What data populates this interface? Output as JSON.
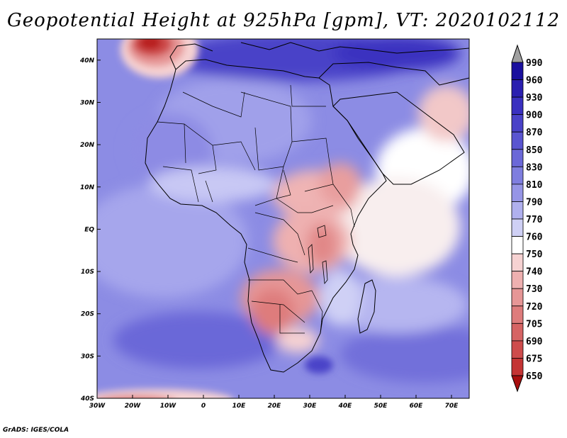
{
  "title": "Geopotential Height at 925hPa [gpm], VT: 2020102112",
  "credit": "GrADS: IGES/COLA",
  "map": {
    "variable": "Geopotential Height",
    "level": "925hPa",
    "units": "gpm",
    "valid_time": "2020102112",
    "lon_range": [
      -30,
      75
    ],
    "lat_range": [
      -40,
      45
    ],
    "lat_labels": [
      "40N",
      "30N",
      "20N",
      "10N",
      "EQ",
      "10S",
      "20S",
      "30S",
      "40S"
    ],
    "lat_values": [
      40,
      30,
      20,
      10,
      0,
      -10,
      -20,
      -30,
      -40
    ],
    "lon_labels": [
      "30W",
      "20W",
      "10W",
      "0",
      "10E",
      "20E",
      "30E",
      "40E",
      "50E",
      "60E",
      "70E"
    ],
    "lon_values": [
      -30,
      -20,
      -10,
      0,
      10,
      20,
      30,
      40,
      50,
      60,
      70
    ]
  },
  "colorbar": {
    "levels": [
      "990",
      "960",
      "930",
      "900",
      "870",
      "850",
      "830",
      "810",
      "790",
      "770",
      "760",
      "750",
      "740",
      "730",
      "720",
      "705",
      "690",
      "675",
      "650"
    ],
    "colors": [
      "#1a0f9e",
      "#2a1fb0",
      "#3a30c0",
      "#4a42c8",
      "#5a55d0",
      "#6b68d8",
      "#7f7edf",
      "#9695e6",
      "#b0b0ee",
      "#cfd0f5",
      "#ffffff",
      "#f6d2d2",
      "#eeb0b0",
      "#e69696",
      "#de7c7c",
      "#d66464",
      "#ce4c4c",
      "#c43434",
      "#b81e1e",
      "#a80e0e"
    ],
    "arrow_top_color": "#a0a0a0",
    "arrow_bottom_color": "#a80e0e"
  }
}
